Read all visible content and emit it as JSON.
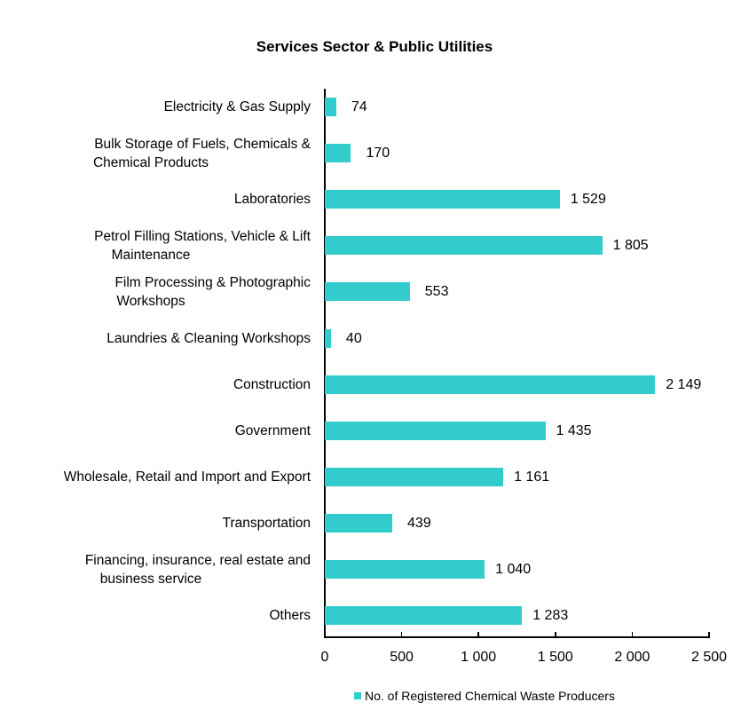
{
  "chart_data": {
    "type": "bar",
    "orientation": "horizontal",
    "title": "Services Sector & Public Utilities",
    "xlabel": "",
    "ylabel": "",
    "xlim": [
      0,
      2500
    ],
    "x_ticks": [
      "0",
      "500",
      "1 000",
      "1 500",
      "2 000",
      "2 500"
    ],
    "x_tick_values": [
      0,
      500,
      1000,
      1500,
      2000,
      2500
    ],
    "grid": false,
    "legend_position": "bottom",
    "categories": [
      "Electricity & Gas Supply",
      "Bulk Storage of Fuels, Chemicals & Chemical Products",
      "Laboratories",
      "Petrol Filling Stations, Vehicle & Lift Maintenance",
      "Film Processing & Photographic Workshops",
      "Laundries & Cleaning Workshops",
      "Construction",
      "Government",
      "Wholesale, Retail and Import and Export",
      "Transportation",
      "Financing, insurance, real estate and business service",
      "Others"
    ],
    "series": [
      {
        "name": "No. of Registered Chemical Waste Producers",
        "color": "#33CCCC",
        "values": [
          74,
          170,
          1529,
          1805,
          553,
          40,
          2149,
          1435,
          1161,
          439,
          1040,
          1283
        ]
      }
    ]
  },
  "title": "Services Sector & Public Utilities",
  "rows": [
    {
      "label_lines": [
        "Electricity & Gas Supply"
      ],
      "value": 74,
      "value_label": "74"
    },
    {
      "label_lines": [
        "Bulk Storage of Fuels, Chemicals &",
        "Chemical Products"
      ],
      "value": 170,
      "value_label": "170"
    },
    {
      "label_lines": [
        "Laboratories"
      ],
      "value": 1529,
      "value_label": "1 529"
    },
    {
      "label_lines": [
        "Petrol Filling Stations, Vehicle & Lift",
        "Maintenance"
      ],
      "value": 1805,
      "value_label": "1 805"
    },
    {
      "label_lines": [
        "Film Processing & Photographic",
        "Workshops"
      ],
      "value": 553,
      "value_label": "553"
    },
    {
      "label_lines": [
        "Laundries & Cleaning Workshops"
      ],
      "value": 40,
      "value_label": "40"
    },
    {
      "label_lines": [
        "Construction"
      ],
      "value": 2149,
      "value_label": "2 149"
    },
    {
      "label_lines": [
        "Government"
      ],
      "value": 1435,
      "value_label": "1 435"
    },
    {
      "label_lines": [
        "Wholesale, Retail and Import and Export"
      ],
      "value": 1161,
      "value_label": "1 161"
    },
    {
      "label_lines": [
        "Transportation"
      ],
      "value": 439,
      "value_label": "439"
    },
    {
      "label_lines": [
        "Financing, insurance, real estate and",
        "business service"
      ],
      "value": 1040,
      "value_label": "1 040"
    },
    {
      "label_lines": [
        "Others"
      ],
      "value": 1283,
      "value_label": "1 283"
    }
  ],
  "axis": {
    "ticks": [
      {
        "label": "0",
        "value": 0
      },
      {
        "label": "500",
        "value": 500
      },
      {
        "label": "1 000",
        "value": 1000
      },
      {
        "label": "1 500",
        "value": 1500
      },
      {
        "label": "2 000",
        "value": 2000
      },
      {
        "label": "2 500",
        "value": 2500
      }
    ],
    "max": 2500
  },
  "legend": {
    "label": "No. of Registered Chemical Waste Producers",
    "color": "#33CCCC"
  }
}
